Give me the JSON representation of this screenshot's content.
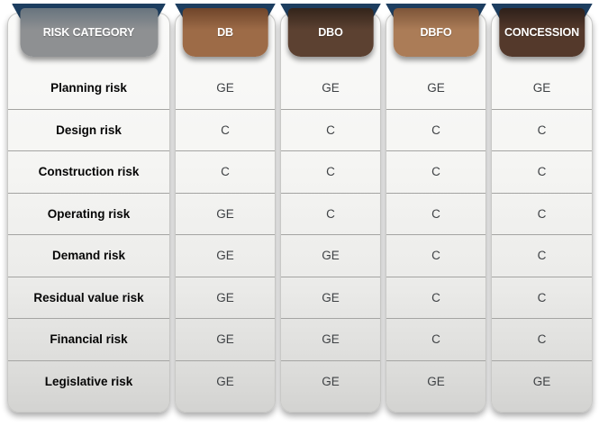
{
  "board": {
    "ribbon_color": "#1d3e60",
    "columns": [
      {
        "key": "risk_category",
        "label": "RISK CATEGORY",
        "tab_main": "#8e9092",
        "tab_dark": "#68747e"
      },
      {
        "key": "db",
        "label": "DB",
        "tab_main": "#9d6b47",
        "tab_dark": "#6f452a"
      },
      {
        "key": "dbo",
        "label": "DBO",
        "tab_main": "#5c4131",
        "tab_dark": "#33241b"
      },
      {
        "key": "dbfo",
        "label": "DBFO",
        "tab_main": "#ab7c57",
        "tab_dark": "#7d5539"
      },
      {
        "key": "concession",
        "label": "CONCESSION",
        "tab_main": "#54392b",
        "tab_dark": "#2e201a"
      }
    ],
    "rows": [
      {
        "label": "Planning risk",
        "values": [
          "GE",
          "GE",
          "GE",
          "GE"
        ]
      },
      {
        "label": "Design risk",
        "values": [
          "C",
          "C",
          "C",
          "C"
        ]
      },
      {
        "label": "Construction risk",
        "values": [
          "C",
          "C",
          "C",
          "C"
        ]
      },
      {
        "label": "Operating risk",
        "values": [
          "GE",
          "C",
          "C",
          "C"
        ]
      },
      {
        "label": "Demand risk",
        "values": [
          "GE",
          "GE",
          "C",
          "C"
        ]
      },
      {
        "label": "Residual value risk",
        "values": [
          "GE",
          "GE",
          "C",
          "C"
        ]
      },
      {
        "label": "Financial risk",
        "values": [
          "GE",
          "GE",
          "C",
          "C"
        ]
      },
      {
        "label": "Legislative risk",
        "values": [
          "GE",
          "GE",
          "GE",
          "GE"
        ]
      }
    ]
  }
}
